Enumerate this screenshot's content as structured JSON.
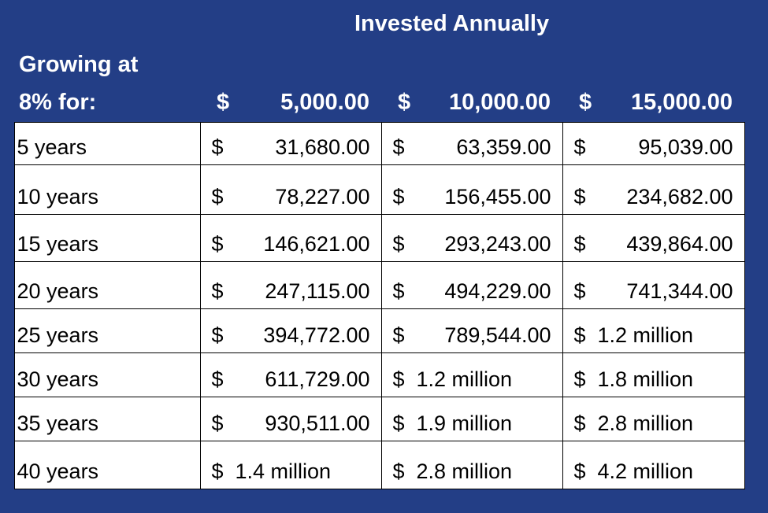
{
  "header": {
    "title": "Invested Annually",
    "row_label_lines": [
      "Growing at",
      "8% for:"
    ],
    "columns": [
      {
        "symbol": "$",
        "amount": "5,000.00"
      },
      {
        "symbol": "$",
        "amount": "10,000.00"
      },
      {
        "symbol": "$",
        "amount": "15,000.00"
      }
    ]
  },
  "table": {
    "rows": [
      {
        "label": "5 years",
        "cells": [
          {
            "symbol": "$",
            "amount": "31,680.00"
          },
          {
            "symbol": "$",
            "amount": "63,359.00"
          },
          {
            "symbol": "$",
            "amount": "95,039.00"
          }
        ]
      },
      {
        "label": "10 years",
        "cells": [
          {
            "symbol": "$",
            "amount": "78,227.00"
          },
          {
            "symbol": "$",
            "amount": "156,455.00"
          },
          {
            "symbol": "$",
            "amount": "234,682.00"
          }
        ]
      },
      {
        "label": "15 years",
        "cells": [
          {
            "symbol": "$",
            "amount": "146,621.00"
          },
          {
            "symbol": "$",
            "amount": "293,243.00"
          },
          {
            "symbol": "$",
            "amount": "439,864.00"
          }
        ]
      },
      {
        "label": "20 years",
        "cells": [
          {
            "symbol": "$",
            "amount": "247,115.00"
          },
          {
            "symbol": "$",
            "amount": "494,229.00"
          },
          {
            "symbol": "$",
            "amount": "741,344.00"
          }
        ]
      },
      {
        "label": "25 years",
        "cells": [
          {
            "symbol": "$",
            "amount": "394,772.00"
          },
          {
            "symbol": "$",
            "amount": "789,544.00"
          },
          {
            "symbol": "$",
            "amount": "1.2 million"
          }
        ]
      },
      {
        "label": "30 years",
        "cells": [
          {
            "symbol": "$",
            "amount": "611,729.00"
          },
          {
            "symbol": "$",
            "amount": "1.2 million"
          },
          {
            "symbol": "$",
            "amount": "1.8 million"
          }
        ]
      },
      {
        "label": "35 years",
        "cells": [
          {
            "symbol": "$",
            "amount": "930,511.00"
          },
          {
            "symbol": "$",
            "amount": "1.9 million"
          },
          {
            "symbol": "$",
            "amount": "2.8 million"
          }
        ]
      },
      {
        "label": "40 years",
        "cells": [
          {
            "symbol": "$",
            "amount": "1.4 million"
          },
          {
            "symbol": "$",
            "amount": "2.8 million"
          },
          {
            "symbol": "$",
            "amount": "4.2 million"
          }
        ]
      }
    ]
  }
}
